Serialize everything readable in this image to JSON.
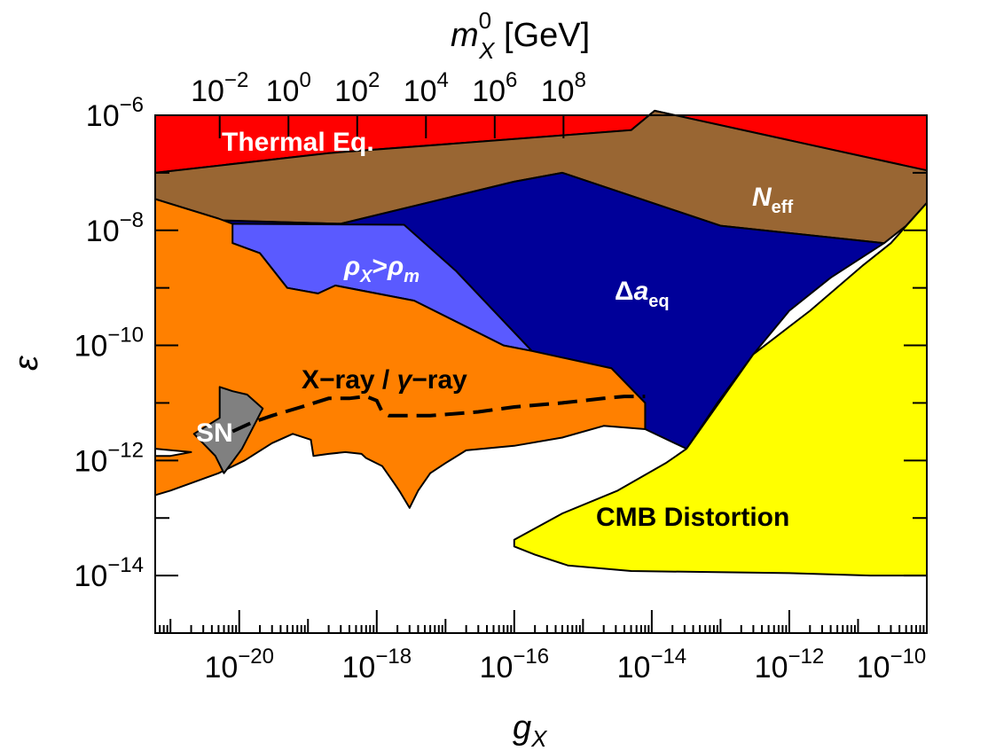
{
  "chart_data": {
    "type": "area",
    "x_scale": "log",
    "y_scale": "log",
    "xlim": [
      6e-22,
      1e-10
    ],
    "ylim": [
      1e-15,
      1e-06
    ],
    "xlabel_base": "g",
    "xlabel_sub": "X",
    "ylabel": "ε",
    "top_axis": {
      "label_main": "m",
      "label_sup": "0",
      "label_sub": "X",
      "label_unit": " [GeV]",
      "tick_positions_gX": [
        5.2e-21,
        5.2e-20,
        5.2e-19,
        5.2e-18,
        5.2e-17,
        5.2e-16
      ],
      "tick_labels": [
        {
          "base": "10",
          "exp": "−2"
        },
        {
          "base": "10",
          "exp": "0"
        },
        {
          "base": "10",
          "exp": "2"
        },
        {
          "base": "10",
          "exp": "4"
        },
        {
          "base": "10",
          "exp": "6"
        },
        {
          "base": "10",
          "exp": "8"
        }
      ]
    },
    "x_ticks": [
      {
        "value": 1e-20,
        "base": "10",
        "exp": "−20"
      },
      {
        "value": 1e-18,
        "base": "10",
        "exp": "−18"
      },
      {
        "value": 1e-16,
        "base": "10",
        "exp": "−16"
      },
      {
        "value": 1e-14,
        "base": "10",
        "exp": "−14"
      },
      {
        "value": 1e-12,
        "base": "10",
        "exp": "−12"
      },
      {
        "value": 1e-10,
        "base": "10",
        "exp": "−10"
      }
    ],
    "y_ticks": [
      {
        "value": 1e-06,
        "base": "10",
        "exp": "−6"
      },
      {
        "value": 1e-08,
        "base": "10",
        "exp": "−8"
      },
      {
        "value": 1e-10,
        "base": "10",
        "exp": "−10"
      },
      {
        "value": 1e-12,
        "base": "10",
        "exp": "−12"
      },
      {
        "value": 1e-14,
        "base": "10",
        "exp": "−14"
      }
    ],
    "regions": [
      {
        "name": "Thermal Eq.",
        "color": "#ff0000",
        "polygon": [
          [
            6e-22,
            1e-06
          ],
          [
            1e-10,
            1e-06
          ],
          [
            1e-10,
            1.1e-07
          ],
          [
            1.1e-14,
            1.2e-06
          ],
          [
            5e-15,
            5.5e-07
          ],
          [
            2e-19,
            2.2e-07
          ],
          [
            6e-22,
            1e-07
          ]
        ]
      },
      {
        "name": "N_eff",
        "color": "#996633",
        "polygon": [
          [
            6e-22,
            1e-07
          ],
          [
            2e-19,
            2.2e-07
          ],
          [
            5e-15,
            5.5e-07
          ],
          [
            1.1e-14,
            1.2e-06
          ],
          [
            1e-10,
            1.1e-07
          ],
          [
            1e-10,
            3e-08
          ],
          [
            5e-11,
            1.2e-08
          ],
          [
            2.4e-11,
            6e-09
          ],
          [
            1e-13,
            1.2e-08
          ],
          [
            5e-16,
            1e-07
          ],
          [
            1e-16,
            7e-08
          ],
          [
            3e-19,
            1.3e-08
          ],
          [
            5e-21,
            1.5e-08
          ],
          [
            6e-22,
            3.5e-08
          ]
        ]
      },
      {
        "name": "Δa_eq",
        "color": "#000099",
        "polygon": [
          [
            4e-21,
            1.5e-08
          ],
          [
            3e-19,
            1.3e-08
          ],
          [
            1e-16,
            7e-08
          ],
          [
            5e-16,
            1e-07
          ],
          [
            1e-13,
            1.2e-08
          ],
          [
            2.4e-11,
            6e-09
          ],
          [
            4e-12,
            1.5e-09
          ],
          [
            1e-12,
            4e-10
          ],
          [
            3e-13,
            7e-11
          ],
          [
            9e-14,
            1e-11
          ],
          [
            3.2e-14,
            1.6e-12
          ],
          [
            8e-15,
            3.5e-12
          ],
          [
            8e-15,
            1e-11
          ],
          [
            2.6e-15,
            4e-11
          ],
          [
            1.8e-16,
            8e-11
          ],
          [
            1.4e-17,
            2e-09
          ]
        ]
      },
      {
        "name": "ρ_X>ρ_m",
        "color": "#5a5aff",
        "polygon": [
          [
            7e-21,
            1.3e-08
          ],
          [
            2.5e-18,
            1.25e-08
          ],
          [
            1.4e-17,
            2e-09
          ],
          [
            1.8e-16,
            8e-11
          ],
          [
            7e-17,
            1e-10
          ],
          [
            3.5e-18,
            6e-10
          ],
          [
            2.5e-19,
            1.1e-09
          ],
          [
            1.4e-19,
            8e-10
          ],
          [
            5e-20,
            1e-09
          ],
          [
            2e-20,
            4e-09
          ],
          [
            8e-21,
            6e-09
          ]
        ]
      },
      {
        "name": "X-ray / γ-ray",
        "color": "#ff8000",
        "polygon": [
          [
            6e-22,
            3.5e-08
          ],
          [
            5e-21,
            1.6e-08
          ],
          [
            8e-21,
            1.3e-08
          ],
          [
            8e-21,
            6e-09
          ],
          [
            2e-20,
            4e-09
          ],
          [
            5e-20,
            1e-09
          ],
          [
            1.4e-19,
            8e-10
          ],
          [
            2.5e-19,
            1.1e-09
          ],
          [
            3.5e-18,
            6e-10
          ],
          [
            7e-17,
            1e-10
          ],
          [
            1.8e-16,
            8e-11
          ],
          [
            2.6e-15,
            4e-11
          ],
          [
            8e-15,
            1e-11
          ],
          [
            8e-15,
            3.5e-12
          ],
          [
            2e-15,
            4e-12
          ],
          [
            5e-16,
            2.5e-12
          ],
          [
            1e-16,
            1.8e-12
          ],
          [
            2e-17,
            1.5e-12
          ],
          [
            1e-17,
            9e-13
          ],
          [
            6e-18,
            6e-13
          ],
          [
            4e-18,
            3e-13
          ],
          [
            3e-18,
            1.5e-13
          ],
          [
            2.2e-18,
            2.8e-13
          ],
          [
            1.8e-18,
            4e-13
          ],
          [
            1.2e-18,
            8e-13
          ],
          [
            7e-19,
            1.1e-12
          ],
          [
            6e-19,
            1.3e-12
          ],
          [
            3.5e-19,
            1.4e-12
          ],
          [
            2e-19,
            1.3e-12
          ],
          [
            1.2e-19,
            1.2e-12
          ],
          [
            1.1e-19,
            2.3e-12
          ],
          [
            6e-20,
            2.9e-12
          ],
          [
            3e-20,
            2e-12
          ],
          [
            1.2e-20,
            1e-12
          ],
          [
            5e-21,
            6e-13
          ],
          [
            1e-21,
            3e-13
          ],
          [
            6e-22,
            2.5e-13
          ],
          [
            6e-22,
            1.2e-12
          ],
          [
            1e-21,
            1.2e-12
          ],
          [
            2e-21,
            1.4e-12
          ],
          [
            6e-22,
            1.6e-12
          ]
        ]
      },
      {
        "name": "SN",
        "color": "#808080",
        "polygon": [
          [
            2.2e-21,
            2.9e-12
          ],
          [
            5.2e-21,
            5.5e-12
          ],
          [
            5.2e-21,
            1.9e-11
          ],
          [
            8e-21,
            1.6e-11
          ],
          [
            1.3e-20,
            1.4e-11
          ],
          [
            2.2e-20,
            8e-12
          ],
          [
            1.1e-20,
            1.6e-12
          ],
          [
            6e-21,
            6e-13
          ],
          [
            4.5e-21,
            1.2e-12
          ]
        ]
      },
      {
        "name": "CMB Distortion",
        "color": "#ffff00",
        "polygon": [
          [
            3.2e-14,
            1.6e-12
          ],
          [
            3e-13,
            7e-11
          ],
          [
            2e-12,
            4e-10
          ],
          [
            1.2e-11,
            2.5e-09
          ],
          [
            3e-11,
            6e-09
          ],
          [
            1e-10,
            3e-08
          ],
          [
            1e-10,
            1e-14
          ],
          [
            1.5e-11,
            1e-14
          ],
          [
            1e-12,
            1.1e-14
          ],
          [
            5e-15,
            1.2e-14
          ],
          [
            6e-16,
            1.5e-14
          ],
          [
            2e-16,
            2.3e-14
          ],
          [
            1e-16,
            3.2e-14
          ],
          [
            1e-16,
            4.2e-14
          ],
          [
            5e-16,
            1.2e-13
          ],
          [
            3.2e-15,
            3e-13
          ],
          [
            1.6e-14,
            9e-13
          ]
        ]
      }
    ],
    "dashed_curve": {
      "points": [
        [
          8e-21,
          3.2e-12
        ],
        [
          1.5e-20,
          4.5e-12
        ],
        [
          3e-20,
          6e-12
        ],
        [
          8e-20,
          8.5e-12
        ],
        [
          2e-19,
          1.2e-11
        ],
        [
          4e-19,
          1.2e-11
        ],
        [
          7e-19,
          1.3e-11
        ],
        [
          1e-18,
          1.1e-11
        ],
        [
          1.2e-18,
          7e-12
        ],
        [
          1.5e-18,
          6e-12
        ],
        [
          6e-18,
          6e-12
        ],
        [
          3e-17,
          7e-12
        ],
        [
          1e-16,
          8.5e-12
        ],
        [
          5e-16,
          1e-11
        ],
        [
          2e-15,
          1.2e-11
        ],
        [
          4e-15,
          1.3e-11
        ],
        [
          8e-15,
          1.3e-11
        ]
      ]
    },
    "labels": {
      "thermal": "Thermal Eq.",
      "neff_main": "N",
      "neff_sub": "eff",
      "aeq_main": "Δ",
      "aeq_italic": "a",
      "aeq_sub": "eq",
      "rho_a": "ρ",
      "rho_a_sub": "X",
      "rho_op": ">",
      "rho_b": "ρ",
      "rho_b_sub": "m",
      "xray": "X−ray / ",
      "xray_gamma": "γ",
      "xray_end": "−ray",
      "sn": "SN",
      "cmb": "CMB Distortion"
    }
  }
}
